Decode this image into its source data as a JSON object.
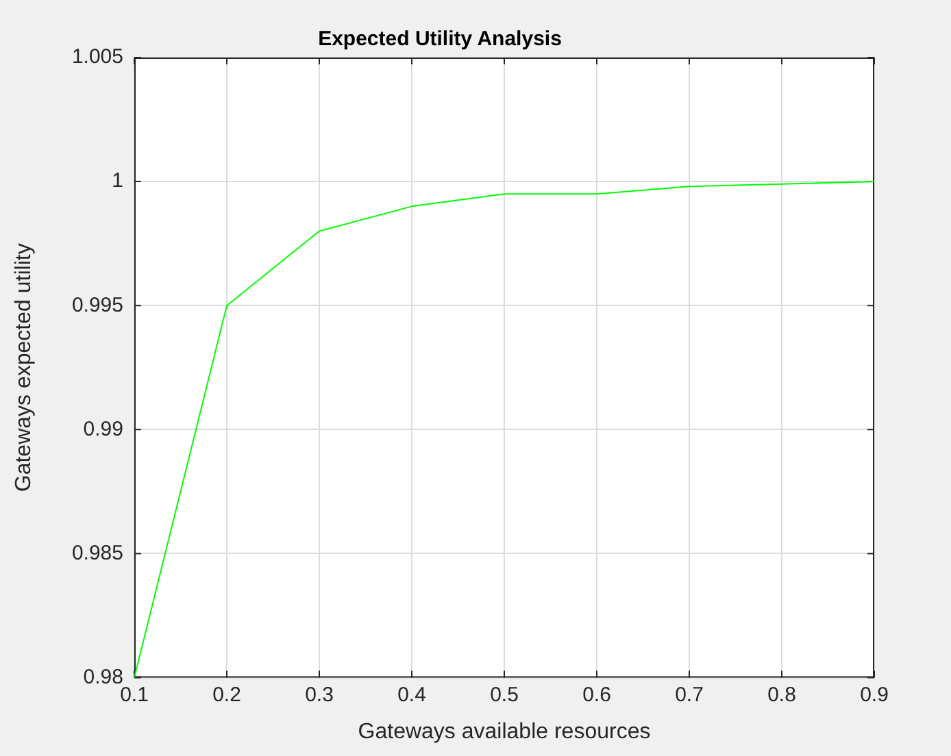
{
  "chart_data": {
    "type": "line",
    "title": "Expected Utility Analysis",
    "xlabel": "Gateways available resources",
    "ylabel": "Gateways expected utility",
    "x": [
      0.1,
      0.2,
      0.3,
      0.4,
      0.5,
      0.6,
      0.7,
      0.8,
      0.9
    ],
    "series": [
      {
        "color": "#00ff00",
        "values": [
          0.98,
          0.995,
          0.998,
          0.999,
          0.9995,
          0.9995,
          0.9998,
          0.9999,
          1.0
        ]
      }
    ],
    "xlim": [
      0.1,
      0.9
    ],
    "xticks": [
      0.1,
      0.2,
      0.3,
      0.4,
      0.5,
      0.6,
      0.7,
      0.8,
      0.9
    ],
    "ylim": [
      0.98,
      1.005
    ],
    "yticks": [
      0.98,
      0.985,
      0.99,
      0.995,
      1,
      1.005
    ],
    "grid": true,
    "legend": false,
    "marker": "none",
    "line_style": "solid"
  }
}
